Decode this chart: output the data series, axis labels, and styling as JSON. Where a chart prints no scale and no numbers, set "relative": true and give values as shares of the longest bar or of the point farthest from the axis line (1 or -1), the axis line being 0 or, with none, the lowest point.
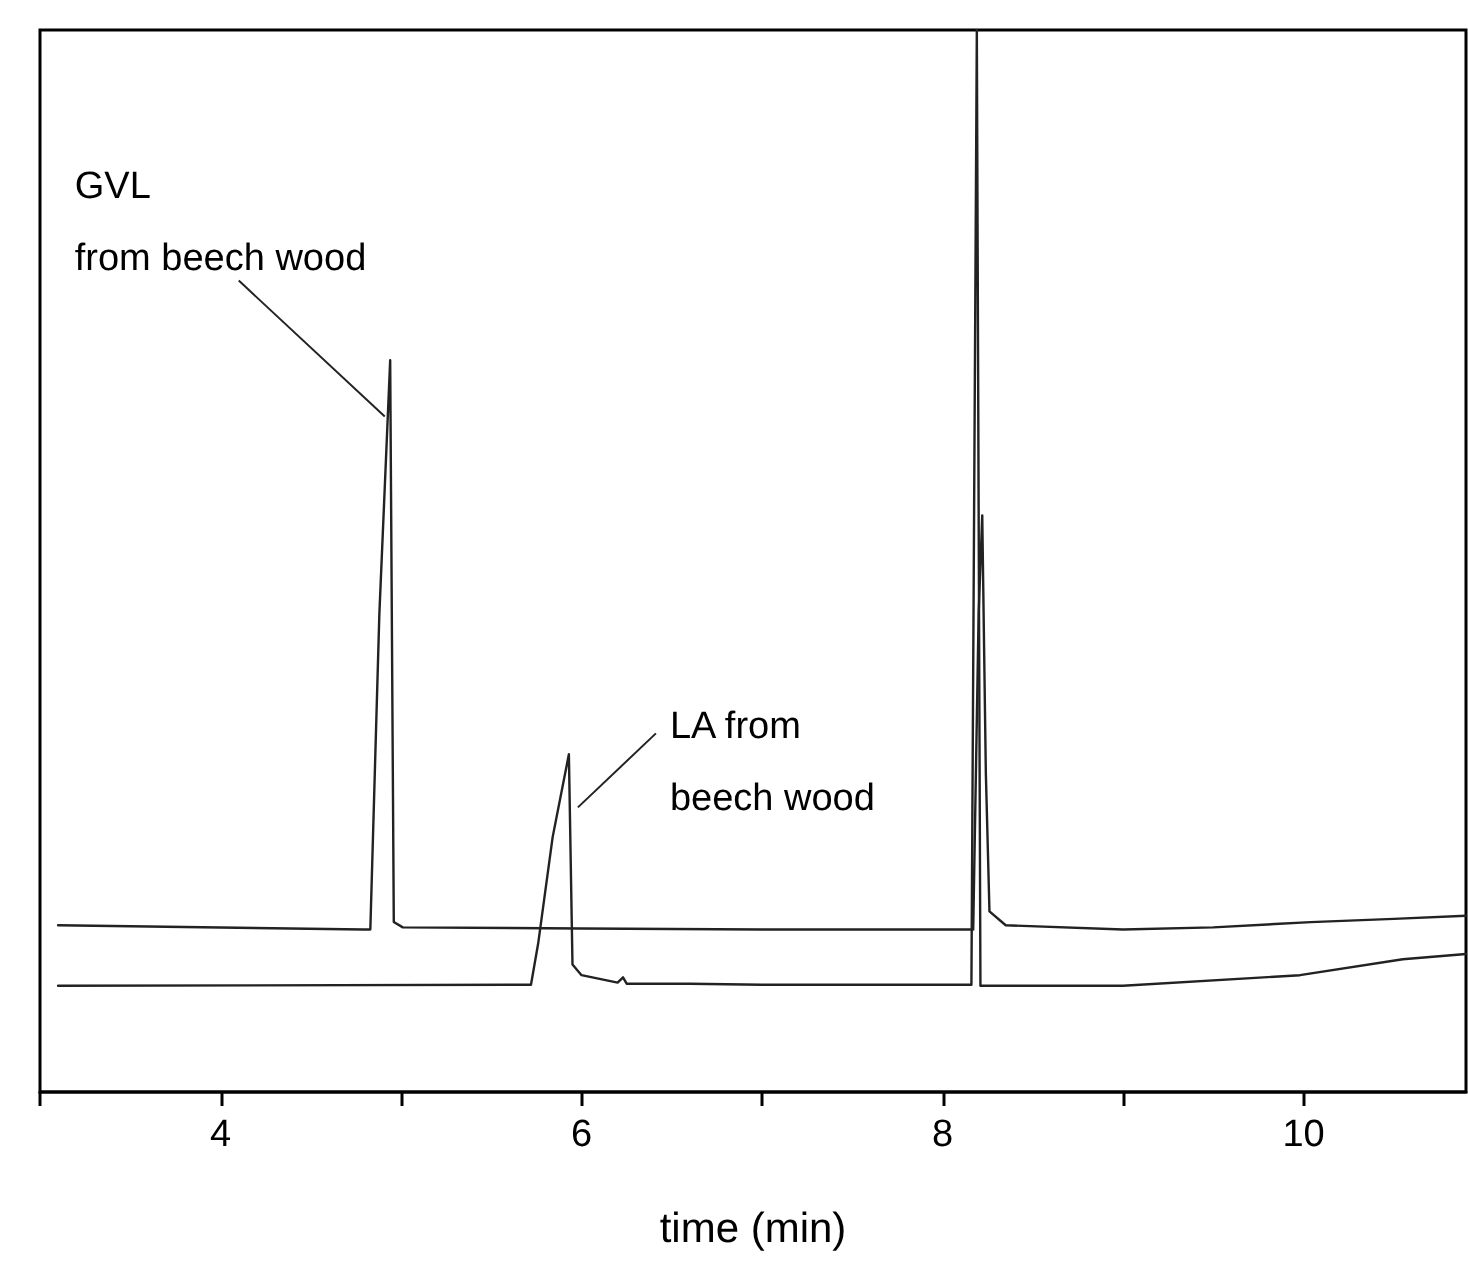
{
  "chart_data": {
    "type": "line",
    "xlabel": "time (min)",
    "relative": true,
    "xlim": [
      3.0,
      10.9
    ],
    "xticks": [
      {
        "value": 3,
        "label": null
      },
      4,
      {
        "value": 5,
        "label": null
      },
      6,
      {
        "value": 7,
        "label": null
      },
      8,
      {
        "value": 9,
        "label": null
      },
      10
    ],
    "grid": false,
    "marker": "none",
    "line_style": "solid",
    "series": [
      {
        "color": "#222222",
        "x": [
          3.1,
          4.79,
          4.83,
          4.88,
          4.94,
          4.96,
          5.01,
          6.0,
          7.0,
          8.17,
          8.2,
          8.22,
          8.24,
          8.26,
          8.35,
          9.0,
          9.5,
          10.04,
          10.5,
          10.9
        ],
        "values": [
          0.157,
          0.153,
          0.153,
          0.45,
          0.689,
          0.16,
          0.155,
          0.154,
          0.153,
          0.153,
          0.45,
          0.543,
          0.3,
          0.17,
          0.157,
          0.153,
          0.155,
          0.16,
          0.163,
          0.166
        ]
      },
      {
        "color": "#222222",
        "x": [
          3.1,
          5.72,
          5.76,
          5.84,
          5.93,
          5.95,
          6.0,
          6.2,
          6.23,
          6.25,
          6.6,
          7.0,
          7.45,
          8.16,
          8.19,
          8.21,
          9.0,
          9.98,
          10.55,
          10.9
        ],
        "values": [
          0.1,
          0.101,
          0.14,
          0.24,
          0.318,
          0.12,
          0.11,
          0.103,
          0.108,
          0.102,
          0.102,
          0.101,
          0.101,
          0.101,
          1.0,
          0.1,
          0.1,
          0.11,
          0.125,
          0.13
        ]
      }
    ],
    "annotations": [
      {
        "text": "GVL\nfrom beech wood",
        "x": 4.91,
        "y": 0.636
      },
      {
        "text": "LA from\nbeech wood",
        "x": 5.98,
        "y": 0.268
      }
    ]
  }
}
